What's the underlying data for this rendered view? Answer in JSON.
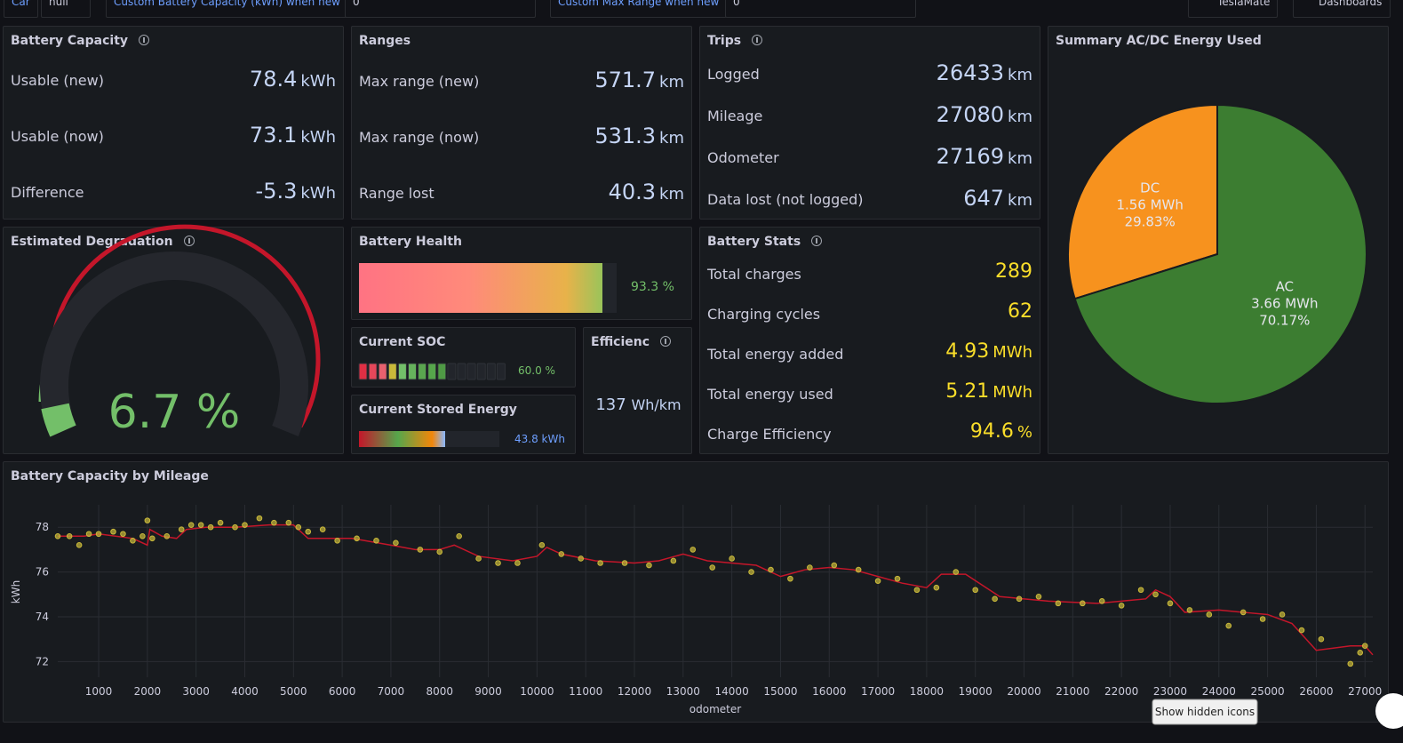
{
  "toolbar": {
    "car_label": "Car",
    "car_value": "null",
    "capacity_label": "Custom Battery Capacity (kWh) when new",
    "capacity_value": "0",
    "range_label": "Custom Max Range when new",
    "range_value": "0",
    "teslamate": "TeslaMate",
    "dashboards": "Dashboards"
  },
  "battery_capacity": {
    "title": "Battery Capacity",
    "rows": [
      {
        "label": "Usable (new)",
        "value": "78.4",
        "unit": "kWh"
      },
      {
        "label": "Usable (now)",
        "value": "73.1",
        "unit": "kWh"
      },
      {
        "label": "Difference",
        "value": "-5.3",
        "unit": "kWh"
      }
    ]
  },
  "ranges": {
    "title": "Ranges",
    "rows": [
      {
        "label": "Max range (new)",
        "value": "571.7",
        "unit": "km"
      },
      {
        "label": "Max range (now)",
        "value": "531.3",
        "unit": "km"
      },
      {
        "label": "Range lost",
        "value": "40.3",
        "unit": "km"
      }
    ]
  },
  "trips": {
    "title": "Trips",
    "rows": [
      {
        "label": "Logged",
        "value": "26433",
        "unit": "km"
      },
      {
        "label": "Mileage",
        "value": "27080",
        "unit": "km"
      },
      {
        "label": "Odometer",
        "value": "27169",
        "unit": "km"
      },
      {
        "label": "Data lost (not logged)",
        "value": "647",
        "unit": "km"
      }
    ]
  },
  "battery_stats": {
    "title": "Battery Stats",
    "rows": [
      {
        "label": "Total charges",
        "value": "289"
      },
      {
        "label": "Charging cycles",
        "value": "62"
      },
      {
        "label": "Total energy added",
        "value": "4.93",
        "unit": "MWh"
      },
      {
        "label": "Total energy used",
        "value": "5.21",
        "unit": "MWh"
      },
      {
        "label": "Charge Efficiency",
        "value": "94.6",
        "unit": "%"
      }
    ]
  },
  "degradation": {
    "title": "Estimated Degradation",
    "value": "6.7 %"
  },
  "battery_health": {
    "title": "Battery Health",
    "value": "93.3 %"
  },
  "current_soc": {
    "title": "Current SOC",
    "value": "60.0 %"
  },
  "stored_energy": {
    "title": "Current Stored Energy",
    "value": "43.8 kWh"
  },
  "efficiency": {
    "title": "Efficienc",
    "value": "137",
    "unit": "Wh/km"
  },
  "pie": {
    "type": "pie",
    "title": "Summary AC/DC Energy Used",
    "series": [
      {
        "name": "DC",
        "energy": "1.56 MWh",
        "value": 29.83,
        "value_label": "29.83%",
        "color": "#f7921e"
      },
      {
        "name": "AC",
        "energy": "3.66 MWh",
        "value": 70.17,
        "value_label": "70.17%",
        "color": "#3c7d31"
      }
    ]
  },
  "chart_data": {
    "type": "scatter",
    "title": "Battery Capacity by Mileage",
    "xlabel": "odometer",
    "ylabel": "kWh",
    "xlim": [
      160,
      27160
    ],
    "ylim": [
      71.3,
      79
    ],
    "xticks": [
      1000,
      2000,
      3000,
      4000,
      5000,
      6000,
      7000,
      8000,
      9000,
      10000,
      11000,
      12000,
      13000,
      14000,
      15000,
      16000,
      17000,
      18000,
      19000,
      20000,
      21000,
      22000,
      23000,
      24000,
      25000,
      26000,
      27000
    ],
    "yticks": [
      72,
      74,
      76,
      78
    ],
    "grid": true,
    "series": [
      {
        "color": "#c9b93a",
        "x": [
          160,
          400,
          600,
          800,
          1000,
          1300,
          1500,
          1700,
          1900,
          2000,
          2100,
          2400,
          2700,
          2900,
          3100,
          3300,
          3500,
          3800,
          4000,
          4300,
          4600,
          4900,
          5100,
          5300,
          5600,
          5900,
          6300,
          6700,
          7100,
          7600,
          8000,
          8400,
          8800,
          9200,
          9600,
          10100,
          10500,
          10900,
          11300,
          11800,
          12300,
          12800,
          13200,
          13600,
          14000,
          14400,
          14800,
          15200,
          15600,
          16100,
          16600,
          17000,
          17400,
          17800,
          18200,
          18600,
          19000,
          19400,
          19900,
          20300,
          20700,
          21200,
          21600,
          22000,
          22400,
          22700,
          23000,
          23400,
          23800,
          24200,
          24500,
          24900,
          25300,
          25700,
          26100,
          26700,
          26900,
          27000
        ],
        "values": [
          77.6,
          77.6,
          77.2,
          77.7,
          77.7,
          77.8,
          77.7,
          77.4,
          77.6,
          78.3,
          77.5,
          77.6,
          77.9,
          78.1,
          78.1,
          78.0,
          78.2,
          78.0,
          78.1,
          78.4,
          78.2,
          78.2,
          78.0,
          77.8,
          77.9,
          77.4,
          77.5,
          77.4,
          77.3,
          77.0,
          76.9,
          77.6,
          76.6,
          76.4,
          76.4,
          77.2,
          76.8,
          76.6,
          76.4,
          76.4,
          76.3,
          76.5,
          77.0,
          76.2,
          76.6,
          76.0,
          76.1,
          75.7,
          76.2,
          76.3,
          76.1,
          75.6,
          75.7,
          75.2,
          75.3,
          76.0,
          75.2,
          74.8,
          74.8,
          74.9,
          74.6,
          74.6,
          74.7,
          74.5,
          75.2,
          75.0,
          74.6,
          74.3,
          74.1,
          73.6,
          74.2,
          73.9,
          74.1,
          73.4,
          73.0,
          71.9,
          72.4,
          72.7
        ]
      },
      {
        "color": "#c4162a",
        "x": [
          160,
          700,
          1000,
          1700,
          2000,
          2050,
          2300,
          2600,
          2800,
          3200,
          3800,
          4500,
          5000,
          5300,
          5800,
          6200,
          7000,
          7500,
          8000,
          8300,
          8800,
          9500,
          10000,
          10200,
          10500,
          11200,
          12000,
          12500,
          13000,
          13500,
          14500,
          15000,
          15500,
          16000,
          16500,
          17000,
          17500,
          18000,
          18300,
          18800,
          19500,
          20000,
          20500,
          21500,
          22000,
          22500,
          22700,
          23000,
          23300,
          24000,
          24500,
          25000,
          25500,
          26000,
          26700,
          27000,
          27160
        ],
        "values": [
          77.6,
          77.6,
          77.7,
          77.5,
          77.2,
          77.9,
          77.6,
          77.5,
          77.9,
          78.0,
          78.0,
          78.1,
          78.1,
          77.5,
          77.5,
          77.5,
          77.2,
          77.0,
          77.0,
          77.2,
          76.7,
          76.5,
          76.7,
          77.1,
          76.8,
          76.5,
          76.4,
          76.5,
          76.8,
          76.5,
          76.3,
          75.8,
          76.1,
          76.2,
          76.1,
          75.8,
          75.5,
          75.3,
          75.9,
          75.9,
          74.9,
          74.8,
          74.7,
          74.6,
          74.7,
          74.8,
          75.2,
          74.9,
          74.2,
          74.3,
          74.2,
          74.1,
          73.7,
          72.5,
          72.7,
          72.7,
          72.3
        ]
      }
    ]
  },
  "tooltip": "Show hidden icons"
}
